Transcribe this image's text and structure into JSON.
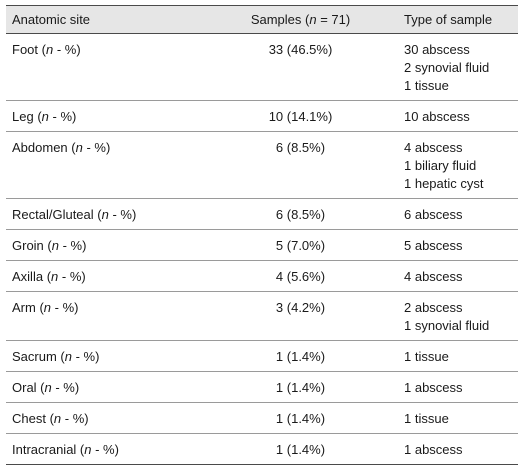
{
  "headers": {
    "site": "Anatomic site",
    "samples_prefix": "Samples (",
    "samples_n": "n",
    "samples_suffix": " = 71)",
    "type": "Type of sample"
  },
  "n_label": "n",
  "pct_prefix": " (",
  "pct_suffix": " - %)",
  "rows": [
    {
      "site": "Foot",
      "samples": "33 (46.5%)",
      "types": [
        "30 abscess",
        "2 synovial fluid",
        "1 tissue"
      ]
    },
    {
      "site": "Leg",
      "samples": "10 (14.1%)",
      "types": [
        "10 abscess"
      ]
    },
    {
      "site": "Abdomen",
      "samples": "6 (8.5%)",
      "types": [
        "4 abscess",
        "1 biliary fluid",
        "1 hepatic cyst"
      ]
    },
    {
      "site": "Rectal/Gluteal",
      "samples": "6 (8.5%)",
      "types": [
        "6 abscess"
      ]
    },
    {
      "site": "Groin",
      "samples": "5 (7.0%)",
      "types": [
        "5 abscess"
      ]
    },
    {
      "site": "Axilla",
      "samples": "4 (5.6%)",
      "types": [
        "4 abscess"
      ]
    },
    {
      "site": "Arm",
      "samples": "3 (4.2%)",
      "types": [
        "2 abscess",
        "1 synovial fluid"
      ]
    },
    {
      "site": "Sacrum",
      "samples": "1 (1.4%)",
      "types": [
        "1 tissue"
      ]
    },
    {
      "site": "Oral",
      "samples": "1 (1.4%)",
      "types": [
        "1 abscess"
      ]
    },
    {
      "site": "Chest",
      "samples": "1 (1.4%)",
      "types": [
        "1 tissue"
      ]
    },
    {
      "site": "Intracranial",
      "samples": "1 (1.4%)",
      "types": [
        "1 abscess"
      ]
    }
  ]
}
